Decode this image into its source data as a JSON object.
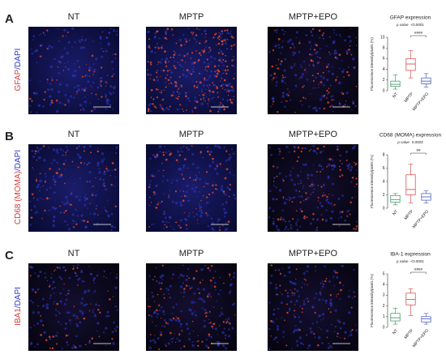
{
  "columns": [
    "NT",
    "MPTP",
    "MPTP+EPO"
  ],
  "panels": [
    {
      "letter": "A",
      "marker": "GFAP",
      "stain": "/DAPI",
      "plot": {
        "title": "GFAP expression",
        "p_label": "p value",
        "p_value": "<0.0001",
        "significance": "####",
        "ylabel": "Fluorescence intensity/pixels (%)",
        "ylim": [
          0,
          10
        ],
        "yticks": [
          0,
          2,
          4,
          6,
          8,
          10
        ],
        "colors": [
          "#2e8b57",
          "#d03c3c",
          "#3a4fb4"
        ],
        "boxes": [
          {
            "min": 0.3,
            "q1": 0.8,
            "median": 1.2,
            "q3": 1.8,
            "max": 3.0
          },
          {
            "min": 2.4,
            "q1": 3.8,
            "median": 5.0,
            "q3": 6.0,
            "max": 7.5
          },
          {
            "min": 0.7,
            "q1": 1.3,
            "median": 1.8,
            "q3": 2.4,
            "max": 3.2
          }
        ]
      }
    },
    {
      "letter": "B",
      "marker": "CD68 (MOMA)",
      "stain": "/DAPI",
      "plot": {
        "title": "CD68 (MOMA) expression",
        "p_label": "p value",
        "p_value": "0.0003",
        "significance": "##",
        "ylabel": "Fluorescence intensity/pixels (%)",
        "ylim": [
          0,
          8
        ],
        "yticks": [
          0,
          2,
          4,
          6,
          8
        ],
        "colors": [
          "#2e8b57",
          "#d03c3c",
          "#3a4fb4"
        ],
        "boxes": [
          {
            "min": 0.5,
            "q1": 0.9,
            "median": 1.3,
            "q3": 1.9,
            "max": 2.2
          },
          {
            "min": 0.8,
            "q1": 2.0,
            "median": 2.8,
            "q3": 5.0,
            "max": 6.6
          },
          {
            "min": 0.8,
            "q1": 1.2,
            "median": 1.7,
            "q3": 2.2,
            "max": 2.6
          }
        ]
      }
    },
    {
      "letter": "C",
      "marker": "IBA1",
      "stain": "/DAPI",
      "plot": {
        "title": "IBA-1 expression",
        "p_label": "p value",
        "p_value": "<0.0001",
        "significance": "####",
        "ylabel": "Fluorescence intensity/pixels (%)",
        "ylim": [
          0,
          5
        ],
        "yticks": [
          0,
          1,
          2,
          3,
          4,
          5
        ],
        "colors": [
          "#2e8b57",
          "#d03c3c",
          "#3a4fb4"
        ],
        "boxes": [
          {
            "min": 0.3,
            "q1": 0.6,
            "median": 0.9,
            "q3": 1.3,
            "max": 1.8
          },
          {
            "min": 1.1,
            "q1": 2.1,
            "median": 2.6,
            "q3": 3.2,
            "max": 3.6
          },
          {
            "min": 0.3,
            "q1": 0.5,
            "median": 0.8,
            "q3": 1.0,
            "max": 1.3
          }
        ]
      }
    }
  ]
}
